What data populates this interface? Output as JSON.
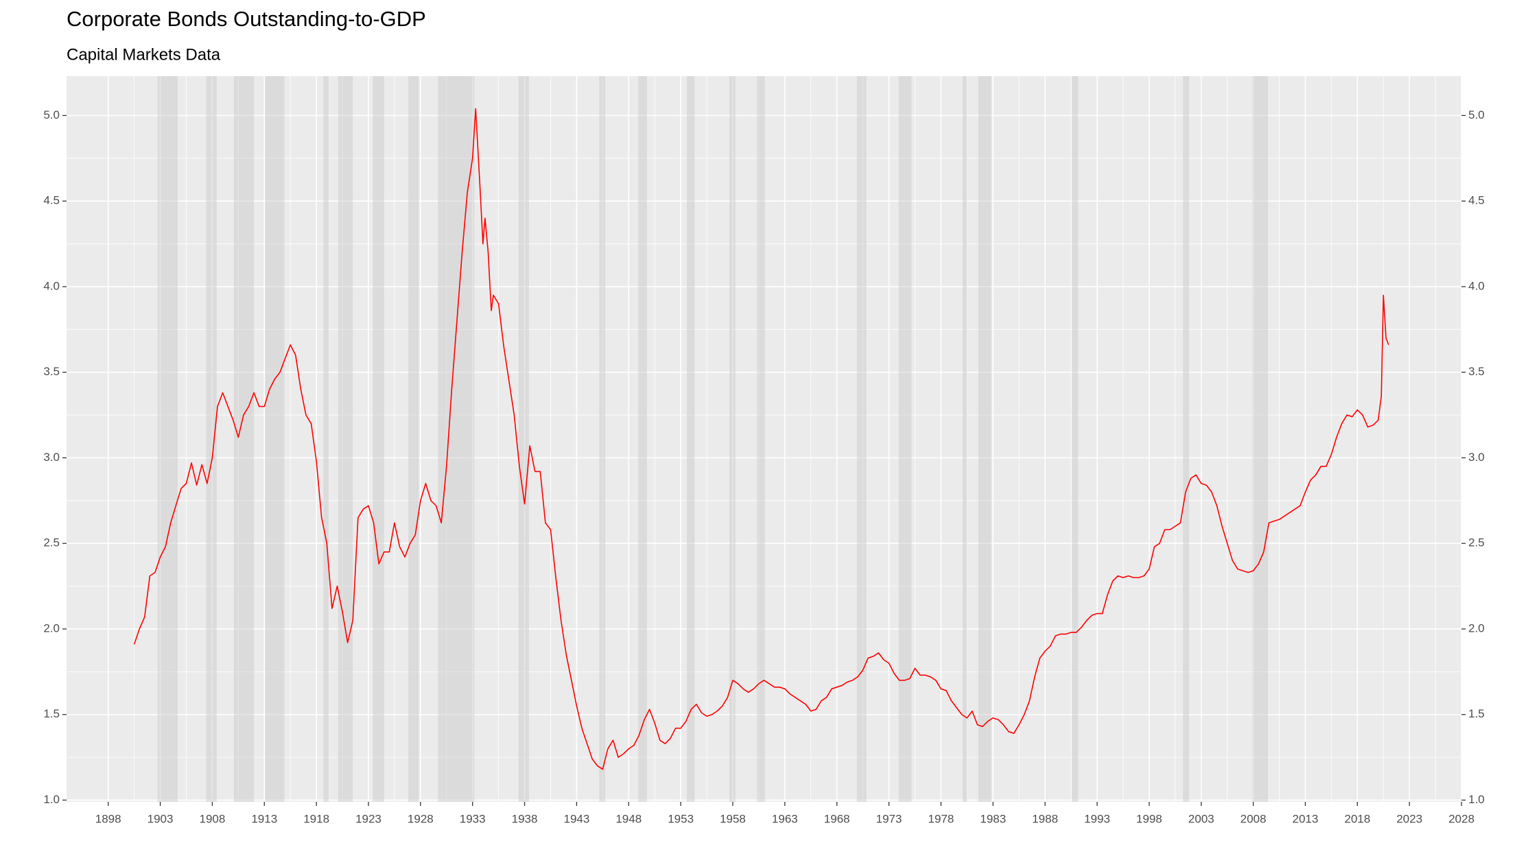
{
  "chart_data": {
    "type": "line",
    "title": "Corporate Bonds Outstanding-to-GDP",
    "subtitle": "Capital Markets Data",
    "color": "#ff0000",
    "grid": true,
    "xlim": [
      1894,
      2028
    ],
    "ylim": [
      0.99,
      5.23
    ],
    "xticks": [
      1898,
      1903,
      1908,
      1913,
      1918,
      1923,
      1928,
      1933,
      1938,
      1943,
      1948,
      1953,
      1958,
      1963,
      1968,
      1973,
      1978,
      1983,
      1988,
      1993,
      1998,
      2003,
      2008,
      2013,
      2018,
      2023,
      2028
    ],
    "yticks": [
      {
        "value": 1,
        "label": "1.0"
      },
      {
        "value": 1.5,
        "label": "1.5"
      },
      {
        "value": 2,
        "label": "2.0"
      },
      {
        "value": 2.5,
        "label": "2.5"
      },
      {
        "value": 3,
        "label": "3.0"
      },
      {
        "value": 3.5,
        "label": "3.5"
      },
      {
        "value": 4,
        "label": "4.0"
      },
      {
        "value": 4.5,
        "label": "4.5"
      },
      {
        "value": 5,
        "label": "5.0"
      }
    ],
    "recessions": [
      [
        1902.75,
        1904.67
      ],
      [
        1907.42,
        1908.42
      ],
      [
        1910.08,
        1912.0
      ],
      [
        1913.08,
        1914.92
      ],
      [
        1918.67,
        1919.17
      ],
      [
        1920.08,
        1921.5
      ],
      [
        1923.42,
        1924.5
      ],
      [
        1926.83,
        1927.83
      ],
      [
        1929.67,
        1933.17
      ],
      [
        1937.42,
        1938.42
      ],
      [
        1945.17,
        1945.75
      ],
      [
        1948.92,
        1949.75
      ],
      [
        1953.58,
        1954.33
      ],
      [
        1957.67,
        1958.25
      ],
      [
        1960.33,
        1961.08
      ],
      [
        1969.92,
        1970.83
      ],
      [
        1973.92,
        1975.17
      ],
      [
        1980.08,
        1980.5
      ],
      [
        1981.58,
        1982.83
      ],
      [
        1990.58,
        1991.17
      ],
      [
        2001.25,
        2001.83
      ],
      [
        2007.92,
        2009.42
      ]
    ],
    "x": [
      1900.5,
      1901.0,
      1901.5,
      1902.0,
      1902.5,
      1903.0,
      1903.5,
      1904.0,
      1904.5,
      1905.0,
      1905.5,
      1906.0,
      1906.5,
      1907.0,
      1907.5,
      1908.0,
      1908.5,
      1909.0,
      1909.5,
      1910.0,
      1910.5,
      1911.0,
      1911.5,
      1912.0,
      1912.5,
      1913.0,
      1913.5,
      1914.0,
      1914.5,
      1915.0,
      1915.5,
      1916.0,
      1916.5,
      1917.0,
      1917.5,
      1918.0,
      1918.5,
      1919.0,
      1919.5,
      1920.0,
      1920.5,
      1921.0,
      1921.5,
      1922.0,
      1922.5,
      1923.0,
      1923.5,
      1924.0,
      1924.5,
      1925.0,
      1925.5,
      1926.0,
      1926.5,
      1927.0,
      1927.5,
      1928.0,
      1928.5,
      1929.0,
      1929.5,
      1930.0,
      1930.5,
      1931.0,
      1931.5,
      1932.0,
      1932.5,
      1933.0,
      1933.3,
      1933.7,
      1934.0,
      1934.2,
      1934.5,
      1934.8,
      1935.0,
      1935.5,
      1936.0,
      1936.5,
      1937.0,
      1937.5,
      1938.0,
      1938.5,
      1939.0,
      1939.5,
      1940.0,
      1940.5,
      1941.0,
      1941.5,
      1942.0,
      1942.5,
      1943.0,
      1943.5,
      1944.0,
      1944.5,
      1945.0,
      1945.5,
      1946.0,
      1946.5,
      1947.0,
      1947.5,
      1948.0,
      1948.5,
      1949.0,
      1949.5,
      1950.0,
      1950.5,
      1951.0,
      1951.5,
      1952.0,
      1952.5,
      1953.0,
      1953.5,
      1954.0,
      1954.5,
      1955.0,
      1955.5,
      1956.0,
      1956.5,
      1957.0,
      1957.5,
      1958.0,
      1958.5,
      1959.0,
      1959.5,
      1960.0,
      1960.5,
      1961.0,
      1961.5,
      1962.0,
      1962.5,
      1963.0,
      1963.5,
      1964.0,
      1964.5,
      1965.0,
      1965.5,
      1966.0,
      1966.5,
      1967.0,
      1967.5,
      1968.0,
      1968.5,
      1969.0,
      1969.5,
      1970.0,
      1970.5,
      1971.0,
      1971.5,
      1972.0,
      1972.5,
      1973.0,
      1973.5,
      1974.0,
      1974.5,
      1975.0,
      1975.5,
      1976.0,
      1976.5,
      1977.0,
      1977.5,
      1978.0,
      1978.5,
      1979.0,
      1979.5,
      1980.0,
      1980.5,
      1981.0,
      1981.5,
      1982.0,
      1982.5,
      1983.0,
      1983.5,
      1984.0,
      1984.5,
      1985.0,
      1985.5,
      1986.0,
      1986.5,
      1987.0,
      1987.5,
      1988.0,
      1988.5,
      1989.0,
      1989.5,
      1990.0,
      1990.5,
      1991.0,
      1991.5,
      1992.0,
      1992.5,
      1993.0,
      1993.5,
      1994.0,
      1994.5,
      1995.0,
      1995.5,
      1996.0,
      1996.5,
      1997.0,
      1997.5,
      1998.0,
      1998.5,
      1999.0,
      1999.5,
      2000.0,
      2000.5,
      2001.0,
      2001.5,
      2002.0,
      2002.5,
      2003.0,
      2003.5,
      2004.0,
      2004.5,
      2005.0,
      2005.5,
      2006.0,
      2006.5,
      2007.0,
      2007.5,
      2008.0,
      2008.5,
      2009.0,
      2009.5,
      2010.0,
      2010.5,
      2011.0,
      2011.5,
      2012.0,
      2012.5,
      2013.0,
      2013.5,
      2014.0,
      2014.5,
      2015.0,
      2015.5,
      2016.0,
      2016.5,
      2017.0,
      2017.5,
      2018.0,
      2018.5,
      2019.0,
      2019.5,
      2020.0,
      2020.3,
      2020.5,
      2020.75,
      2021.0
    ],
    "values": [
      1.91,
      2.0,
      2.07,
      2.31,
      2.33,
      2.42,
      2.48,
      2.62,
      2.72,
      2.82,
      2.85,
      2.97,
      2.84,
      2.96,
      2.85,
      3.0,
      3.3,
      3.38,
      3.3,
      3.22,
      3.12,
      3.25,
      3.3,
      3.38,
      3.3,
      3.3,
      3.4,
      3.46,
      3.5,
      3.58,
      3.66,
      3.6,
      3.4,
      3.25,
      3.2,
      2.98,
      2.65,
      2.5,
      2.12,
      2.25,
      2.1,
      1.92,
      2.05,
      2.65,
      2.7,
      2.72,
      2.62,
      2.38,
      2.45,
      2.45,
      2.62,
      2.48,
      2.42,
      2.5,
      2.55,
      2.75,
      2.85,
      2.75,
      2.72,
      2.62,
      2.95,
      3.4,
      3.8,
      4.2,
      4.55,
      4.75,
      5.04,
      4.6,
      4.25,
      4.4,
      4.2,
      3.86,
      3.95,
      3.9,
      3.65,
      3.45,
      3.25,
      2.95,
      2.73,
      3.07,
      2.92,
      2.92,
      2.62,
      2.58,
      2.3,
      2.05,
      1.85,
      1.7,
      1.55,
      1.42,
      1.33,
      1.24,
      1.2,
      1.18,
      1.3,
      1.35,
      1.25,
      1.27,
      1.3,
      1.32,
      1.38,
      1.47,
      1.53,
      1.45,
      1.35,
      1.33,
      1.36,
      1.42,
      1.42,
      1.46,
      1.53,
      1.56,
      1.51,
      1.49,
      1.5,
      1.52,
      1.55,
      1.6,
      1.7,
      1.68,
      1.65,
      1.63,
      1.65,
      1.68,
      1.7,
      1.68,
      1.66,
      1.66,
      1.65,
      1.62,
      1.6,
      1.58,
      1.56,
      1.52,
      1.53,
      1.58,
      1.6,
      1.65,
      1.66,
      1.67,
      1.69,
      1.7,
      1.72,
      1.76,
      1.83,
      1.84,
      1.86,
      1.82,
      1.8,
      1.74,
      1.7,
      1.7,
      1.71,
      1.77,
      1.73,
      1.73,
      1.72,
      1.7,
      1.65,
      1.64,
      1.58,
      1.54,
      1.5,
      1.48,
      1.52,
      1.44,
      1.43,
      1.46,
      1.48,
      1.47,
      1.44,
      1.4,
      1.39,
      1.44,
      1.5,
      1.58,
      1.72,
      1.83,
      1.87,
      1.9,
      1.96,
      1.97,
      1.97,
      1.98,
      1.98,
      2.01,
      2.05,
      2.08,
      2.09,
      2.09,
      2.2,
      2.28,
      2.31,
      2.3,
      2.31,
      2.3,
      2.3,
      2.31,
      2.35,
      2.48,
      2.5,
      2.58,
      2.58,
      2.6,
      2.62,
      2.8,
      2.88,
      2.9,
      2.85,
      2.84,
      2.8,
      2.72,
      2.6,
      2.5,
      2.4,
      2.35,
      2.34,
      2.33,
      2.34,
      2.38,
      2.45,
      2.62,
      2.63,
      2.64,
      2.66,
      2.68,
      2.7,
      2.72,
      2.8,
      2.87,
      2.9,
      2.95,
      2.95,
      3.02,
      3.12,
      3.2,
      3.25,
      3.24,
      3.28,
      3.25,
      3.18,
      3.19,
      3.22,
      3.36,
      3.95,
      3.7,
      3.66
    ]
  }
}
